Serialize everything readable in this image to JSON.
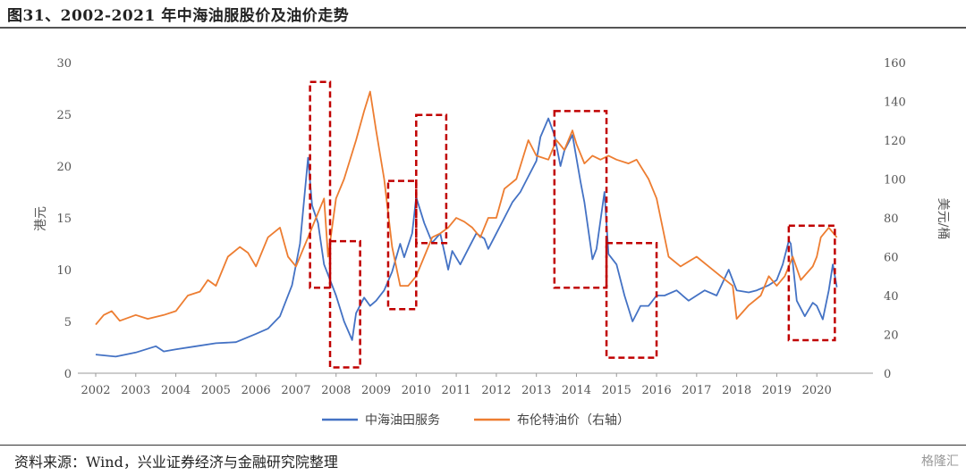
{
  "figure": {
    "title": "图31、2002-2021 年中海油服股价及油价走势",
    "source": "资料来源：Wind，兴业证券经济与金融研究院整理",
    "watermark": "格隆汇"
  },
  "chart_data": {
    "type": "line",
    "title": "",
    "xlabel": "",
    "ylabel_left": "港元",
    "ylabel_right": "美元/桶",
    "y_left_range": [
      0,
      30
    ],
    "y_left_ticks": [
      0,
      5,
      10,
      15,
      20,
      25,
      30
    ],
    "y_right_range": [
      0,
      160
    ],
    "y_right_ticks": [
      0,
      20,
      40,
      60,
      80,
      100,
      120,
      140,
      160
    ],
    "x_range": [
      2002,
      2021
    ],
    "x_ticks": [
      "2002",
      "2003",
      "2004",
      "2005",
      "2006",
      "2007",
      "2008",
      "2009",
      "2010",
      "2011",
      "2012",
      "2013",
      "2014",
      "2015",
      "2016",
      "2017",
      "2018",
      "2019",
      "2020"
    ],
    "grid": false,
    "legend_position": "bottom-center",
    "colors": {
      "stock": "#4472c4",
      "oil": "#ed7d31",
      "boxes": "#c00000"
    },
    "series": [
      {
        "name": "中海油田服务",
        "axis": "left",
        "x": [
          2002.0,
          2002.5,
          2003.0,
          2003.5,
          2003.7,
          2004.0,
          2004.5,
          2005.0,
          2005.5,
          2006.0,
          2006.3,
          2006.6,
          2006.9,
          2007.1,
          2007.3,
          2007.4,
          2007.55,
          2007.7,
          2007.9,
          2008.0,
          2008.2,
          2008.4,
          2008.5,
          2008.7,
          2008.85,
          2009.0,
          2009.2,
          2009.4,
          2009.6,
          2009.7,
          2009.9,
          2010.0,
          2010.2,
          2010.4,
          2010.6,
          2010.8,
          2010.9,
          2011.1,
          2011.3,
          2011.5,
          2011.7,
          2011.8,
          2012.0,
          2012.2,
          2012.4,
          2012.6,
          2012.8,
          2013.0,
          2013.1,
          2013.3,
          2013.45,
          2013.6,
          2013.7,
          2013.9,
          2014.1,
          2014.2,
          2014.4,
          2014.5,
          2014.7,
          2014.8,
          2015.0,
          2015.2,
          2015.4,
          2015.6,
          2015.8,
          2016.0,
          2016.2,
          2016.5,
          2016.8,
          2017.0,
          2017.2,
          2017.5,
          2017.8,
          2018.0,
          2018.3,
          2018.5,
          2018.8,
          2019.0,
          2019.15,
          2019.3,
          2019.35,
          2019.5,
          2019.7,
          2019.9,
          2020.0,
          2020.15,
          2020.3,
          2020.4,
          2020.5
        ],
        "values": [
          1.8,
          1.6,
          2.0,
          2.6,
          2.1,
          2.3,
          2.6,
          2.9,
          3.0,
          3.8,
          4.3,
          5.5,
          8.5,
          12.5,
          20.8,
          16.2,
          14.5,
          10.5,
          8.5,
          7.5,
          5.0,
          3.2,
          5.8,
          7.3,
          6.5,
          7.0,
          8.0,
          9.8,
          12.5,
          11.2,
          13.5,
          17.0,
          14.5,
          12.6,
          13.5,
          10.0,
          11.8,
          10.5,
          12.0,
          13.5,
          13.0,
          12.0,
          13.5,
          15.0,
          16.5,
          17.5,
          19.0,
          20.5,
          22.8,
          24.6,
          23.0,
          20.0,
          21.5,
          23.0,
          18.5,
          16.5,
          11.0,
          12.0,
          17.5,
          11.5,
          10.5,
          7.5,
          5.0,
          6.5,
          6.5,
          7.5,
          7.5,
          8.0,
          7.0,
          7.5,
          8.0,
          7.5,
          10.0,
          8.0,
          7.8,
          8.0,
          8.5,
          9.0,
          10.5,
          12.8,
          12.5,
          7.0,
          5.5,
          6.8,
          6.5,
          5.2,
          8.0,
          10.5,
          8.3
        ]
      },
      {
        "name": "布伦特油价（右轴）",
        "axis": "right",
        "x": [
          2002.0,
          2002.2,
          2002.4,
          2002.6,
          2003.0,
          2003.3,
          2003.7,
          2004.0,
          2004.3,
          2004.6,
          2004.8,
          2005.0,
          2005.3,
          2005.6,
          2005.8,
          2006.0,
          2006.3,
          2006.6,
          2006.8,
          2007.0,
          2007.3,
          2007.5,
          2007.7,
          2007.8,
          2008.0,
          2008.2,
          2008.5,
          2008.7,
          2008.85,
          2009.0,
          2009.2,
          2009.4,
          2009.6,
          2009.8,
          2010.0,
          2010.2,
          2010.4,
          2010.6,
          2010.8,
          2011.0,
          2011.2,
          2011.4,
          2011.6,
          2011.8,
          2012.0,
          2012.2,
          2012.5,
          2012.8,
          2013.0,
          2013.3,
          2013.5,
          2013.7,
          2013.9,
          2014.0,
          2014.2,
          2014.4,
          2014.6,
          2014.8,
          2015.0,
          2015.3,
          2015.5,
          2015.8,
          2016.0,
          2016.3,
          2016.6,
          2017.0,
          2017.3,
          2017.6,
          2017.9,
          2018.0,
          2018.3,
          2018.6,
          2018.8,
          2019.0,
          2019.2,
          2019.4,
          2019.6,
          2019.9,
          2020.0,
          2020.1,
          2020.3,
          2020.5
        ],
        "values": [
          25,
          30,
          32,
          27,
          30,
          28,
          30,
          32,
          40,
          42,
          48,
          45,
          60,
          65,
          62,
          55,
          70,
          75,
          60,
          55,
          70,
          80,
          90,
          60,
          90,
          100,
          120,
          135,
          145,
          125,
          100,
          65,
          45,
          45,
          50,
          60,
          70,
          72,
          75,
          80,
          78,
          75,
          70,
          80,
          80,
          95,
          100,
          120,
          112,
          110,
          120,
          115,
          125,
          118,
          108,
          112,
          110,
          112,
          110,
          108,
          110,
          100,
          90,
          60,
          55,
          60,
          55,
          50,
          45,
          28,
          35,
          40,
          50,
          45,
          50,
          60,
          48,
          55,
          60,
          70,
          75,
          70
        ]
      }
    ],
    "highlight_boxes_years": [
      {
        "x0": 2007.35,
        "x1": 2007.85,
        "y0_right": 44,
        "y1_right": 150
      },
      {
        "x0": 2007.85,
        "x1": 2008.6,
        "y0_right": 3,
        "y1_right": 68
      },
      {
        "x0": 2009.3,
        "x1": 2010.0,
        "y0_right": 33,
        "y1_right": 99
      },
      {
        "x0": 2010.0,
        "x1": 2010.75,
        "y0_right": 67,
        "y1_right": 133
      },
      {
        "x0": 2013.45,
        "x1": 2014.75,
        "y0_right": 44,
        "y1_right": 135
      },
      {
        "x0": 2014.75,
        "x1": 2016.0,
        "y0_right": 8,
        "y1_right": 67
      },
      {
        "x0": 2019.3,
        "x1": 2020.45,
        "y0_right": 17,
        "y1_right": 76
      }
    ]
  }
}
